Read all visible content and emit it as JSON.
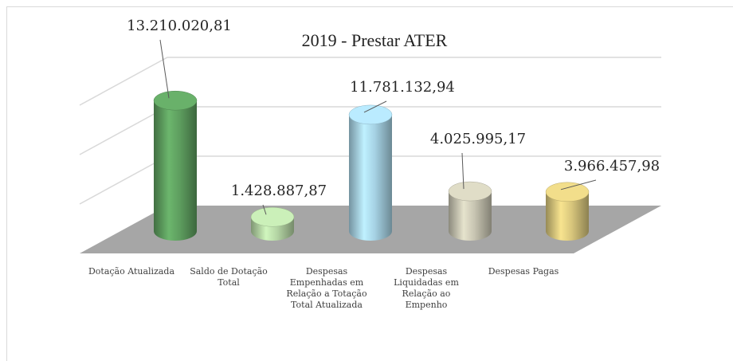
{
  "chart_data": {
    "type": "bar3d",
    "title": "2019 - Prestar ATER",
    "categories": [
      "Dotação Atualizada",
      "Saldo de Dotação Total",
      "Despesas Empenhadas em Relação a Totação Total Atualizada",
      "Despesas Liquidadas em Relação ao Empenho",
      "Despesas Pagas"
    ],
    "values": [
      13210020.81,
      1428887.87,
      11781132.94,
      4025995.17,
      3966457.98
    ],
    "value_labels": [
      "13.210.020,81",
      "1.428.887,87",
      "11.781.132,94",
      "4.025.995,17",
      "3.966.457,98"
    ],
    "colors": [
      "#5e9e5f",
      "#b5d6a5",
      "#a6d2e4",
      "#c8c5b2",
      "#d8c67c"
    ],
    "ylim": [
      0,
      15000000
    ],
    "yticks": [
      0,
      5000000,
      10000000,
      15000000
    ],
    "grid": true
  }
}
